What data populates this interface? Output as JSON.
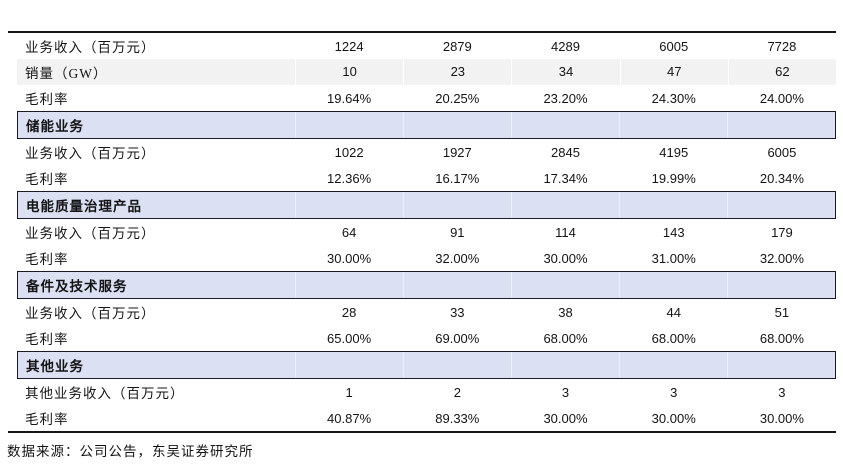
{
  "colors": {
    "section_header_bg": "#dbe0f2",
    "shaded_row_bg": "#f2f2f3",
    "rule_dark": "#15151f",
    "text": "#141414"
  },
  "table": {
    "column_count": 5,
    "rows": [
      {
        "type": "data",
        "shaded": false,
        "label": "业务收入（百万元）",
        "values": [
          "1224",
          "2879",
          "4289",
          "6005",
          "7728"
        ]
      },
      {
        "type": "data",
        "shaded": true,
        "label": "销量（GW）",
        "values": [
          "10",
          "23",
          "34",
          "47",
          "62"
        ]
      },
      {
        "type": "data",
        "shaded": false,
        "label": "毛利率",
        "values": [
          "19.64%",
          "20.25%",
          "23.20%",
          "24.30%",
          "24.00%"
        ]
      },
      {
        "type": "section",
        "shaded": false,
        "label": "储能业务",
        "values": [
          "",
          "",
          "",
          "",
          ""
        ]
      },
      {
        "type": "data",
        "shaded": false,
        "label": "业务收入（百万元）",
        "values": [
          "1022",
          "1927",
          "2845",
          "4195",
          "6005"
        ]
      },
      {
        "type": "data",
        "shaded": false,
        "label": "毛利率",
        "values": [
          "12.36%",
          "16.17%",
          "17.34%",
          "19.99%",
          "20.34%"
        ]
      },
      {
        "type": "section",
        "shaded": false,
        "label": "电能质量治理产品",
        "values": [
          "",
          "",
          "",
          "",
          ""
        ]
      },
      {
        "type": "data",
        "shaded": false,
        "label": "业务收入（百万元）",
        "values": [
          "64",
          "91",
          "114",
          "143",
          "179"
        ]
      },
      {
        "type": "data",
        "shaded": false,
        "label": "毛利率",
        "values": [
          "30.00%",
          "32.00%",
          "30.00%",
          "31.00%",
          "32.00%"
        ]
      },
      {
        "type": "section",
        "shaded": false,
        "label": "备件及技术服务",
        "values": [
          "",
          "",
          "",
          "",
          ""
        ]
      },
      {
        "type": "data",
        "shaded": false,
        "label": "业务收入（百万元）",
        "values": [
          "28",
          "33",
          "38",
          "44",
          "51"
        ]
      },
      {
        "type": "data",
        "shaded": false,
        "label": "毛利率",
        "values": [
          "65.00%",
          "69.00%",
          "68.00%",
          "68.00%",
          "68.00%"
        ]
      },
      {
        "type": "section",
        "shaded": false,
        "label": "其他业务",
        "values": [
          "",
          "",
          "",
          "",
          ""
        ]
      },
      {
        "type": "data",
        "shaded": false,
        "label": "其他业务收入（百万元）",
        "values": [
          "1",
          "2",
          "3",
          "3",
          "3"
        ]
      },
      {
        "type": "data",
        "shaded": false,
        "label": "毛利率",
        "values": [
          "40.87%",
          "89.33%",
          "30.00%",
          "30.00%",
          "30.00%"
        ]
      }
    ]
  },
  "footer": {
    "source_note": "数据来源：公司公告，东吴证券研究所"
  }
}
